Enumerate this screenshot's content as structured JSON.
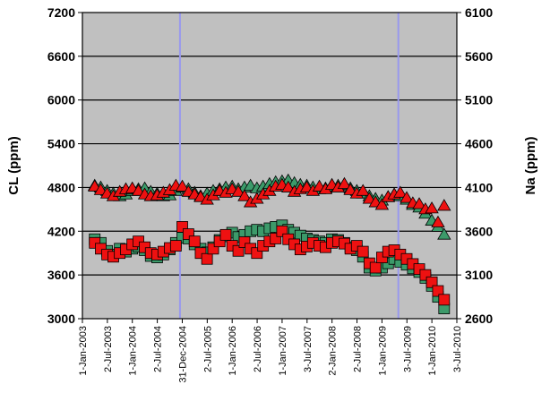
{
  "chart_data": {
    "type": "scatter",
    "y_left_label": "CL (ppm)",
    "y_right_label": "Na (ppm)",
    "y_left_range": [
      3000,
      7200
    ],
    "y_left_ticks": [
      "7200",
      "6600",
      "6000",
      "5400",
      "4800",
      "4200",
      "3600",
      "3000"
    ],
    "y_right_range": [
      2600,
      6100
    ],
    "y_right_ticks": [
      "6100",
      "5600",
      "5100",
      "4600",
      "4100",
      "3600",
      "3100",
      "2600"
    ],
    "x_tick_labels": [
      "1-Jan-2003",
      "2-Jul-2003",
      "1-Jan-2004",
      "2-Jul-2004",
      "31-Dec-2004",
      "2-Jul-2005",
      "1-Jan-2006",
      "2-Jul-2006",
      "1-Jan-2007",
      "3-Jul-2007",
      "2-Jan-2008",
      "2-Jul-2008",
      "1-Jan-2009",
      "3-Jul-2009",
      "1-Jan-2010",
      "3-Jul-2010"
    ],
    "x_range": [
      "2003-01-01",
      "2010-07-03"
    ],
    "grid": "horizontal",
    "vertical_markers": [
      "2004-12-15",
      "2009-05-01"
    ],
    "colors": {
      "plot_background": "#c0c0c0",
      "grid_line": "#000000",
      "marker_line": "#9999ee",
      "green_fill": "#3c9a6a",
      "red_fill": "#ee1111",
      "outline": "#000000"
    },
    "series": [
      {
        "marker": "triangle",
        "color": "green",
        "axis": "right",
        "points": [
          {
            "x": "2003-04-01",
            "y": 4120
          },
          {
            "x": "2003-05-15",
            "y": 4100
          },
          {
            "x": "2003-07-01",
            "y": 4060
          },
          {
            "x": "2003-08-15",
            "y": 4030
          },
          {
            "x": "2003-10-01",
            "y": 4000
          },
          {
            "x": "2003-11-15",
            "y": 4020
          },
          {
            "x": "2004-01-01",
            "y": 4060
          },
          {
            "x": "2004-02-15",
            "y": 4080
          },
          {
            "x": "2004-04-01",
            "y": 4090
          },
          {
            "x": "2004-05-15",
            "y": 4050
          },
          {
            "x": "2004-07-01",
            "y": 4030
          },
          {
            "x": "2004-08-15",
            "y": 4000
          },
          {
            "x": "2004-10-01",
            "y": 4010
          },
          {
            "x": "2004-11-15",
            "y": 4060
          },
          {
            "x": "2005-01-01",
            "y": 4100
          },
          {
            "x": "2005-02-15",
            "y": 4080
          },
          {
            "x": "2005-04-01",
            "y": 4040
          },
          {
            "x": "2005-05-15",
            "y": 4000
          },
          {
            "x": "2005-07-01",
            "y": 4030
          },
          {
            "x": "2005-08-15",
            "y": 4060
          },
          {
            "x": "2005-10-01",
            "y": 4080
          },
          {
            "x": "2005-11-15",
            "y": 4100
          },
          {
            "x": "2006-01-01",
            "y": 4110
          },
          {
            "x": "2006-02-15",
            "y": 4080
          },
          {
            "x": "2006-04-01",
            "y": 4100
          },
          {
            "x": "2006-05-15",
            "y": 4120
          },
          {
            "x": "2006-07-01",
            "y": 4090
          },
          {
            "x": "2006-08-15",
            "y": 4110
          },
          {
            "x": "2006-10-01",
            "y": 4140
          },
          {
            "x": "2006-11-15",
            "y": 4160
          },
          {
            "x": "2007-01-01",
            "y": 4170
          },
          {
            "x": "2007-02-15",
            "y": 4180
          },
          {
            "x": "2007-04-01",
            "y": 4150
          },
          {
            "x": "2007-05-15",
            "y": 4130
          },
          {
            "x": "2007-07-01",
            "y": 4120
          },
          {
            "x": "2007-08-15",
            "y": 4100
          },
          {
            "x": "2007-10-01",
            "y": 4080
          },
          {
            "x": "2007-11-15",
            "y": 4090
          },
          {
            "x": "2008-01-01",
            "y": 4110
          },
          {
            "x": "2008-02-15",
            "y": 4120
          },
          {
            "x": "2008-04-01",
            "y": 4130
          },
          {
            "x": "2008-05-15",
            "y": 4090
          },
          {
            "x": "2008-07-01",
            "y": 4060
          },
          {
            "x": "2008-08-15",
            "y": 4030
          },
          {
            "x": "2008-10-01",
            "y": 4000
          },
          {
            "x": "2008-11-15",
            "y": 3970
          },
          {
            "x": "2009-01-01",
            "y": 3950
          },
          {
            "x": "2009-02-15",
            "y": 3990
          },
          {
            "x": "2009-04-01",
            "y": 4020
          },
          {
            "x": "2009-05-15",
            "y": 4000
          },
          {
            "x": "2009-07-01",
            "y": 3960
          },
          {
            "x": "2009-08-15",
            "y": 3900
          },
          {
            "x": "2009-10-01",
            "y": 3870
          },
          {
            "x": "2009-11-15",
            "y": 3800
          },
          {
            "x": "2010-01-01",
            "y": 3720
          },
          {
            "x": "2010-02-15",
            "y": 3650
          },
          {
            "x": "2010-04-01",
            "y": 3560
          }
        ]
      },
      {
        "marker": "triangle",
        "color": "red",
        "axis": "right",
        "points": [
          {
            "x": "2003-04-01",
            "y": 4110
          },
          {
            "x": "2003-05-15",
            "y": 4070
          },
          {
            "x": "2003-07-01",
            "y": 4030
          },
          {
            "x": "2003-08-15",
            "y": 4000
          },
          {
            "x": "2003-10-01",
            "y": 4050
          },
          {
            "x": "2003-11-15",
            "y": 4080
          },
          {
            "x": "2004-01-01",
            "y": 4090
          },
          {
            "x": "2004-02-15",
            "y": 4060
          },
          {
            "x": "2004-04-01",
            "y": 4020
          },
          {
            "x": "2004-05-15",
            "y": 4000
          },
          {
            "x": "2004-07-01",
            "y": 4010
          },
          {
            "x": "2004-08-15",
            "y": 4040
          },
          {
            "x": "2004-10-01",
            "y": 4070
          },
          {
            "x": "2004-11-15",
            "y": 4120
          },
          {
            "x": "2005-01-01",
            "y": 4110
          },
          {
            "x": "2005-02-15",
            "y": 4050
          },
          {
            "x": "2005-04-01",
            "y": 4020
          },
          {
            "x": "2005-05-15",
            "y": 3990
          },
          {
            "x": "2005-07-01",
            "y": 3960
          },
          {
            "x": "2005-08-15",
            "y": 4010
          },
          {
            "x": "2005-10-01",
            "y": 4060
          },
          {
            "x": "2005-11-15",
            "y": 4040
          },
          {
            "x": "2006-01-01",
            "y": 4080
          },
          {
            "x": "2006-02-15",
            "y": 4050
          },
          {
            "x": "2006-04-01",
            "y": 4000
          },
          {
            "x": "2006-05-15",
            "y": 3930
          },
          {
            "x": "2006-07-01",
            "y": 3970
          },
          {
            "x": "2006-08-15",
            "y": 4020
          },
          {
            "x": "2006-10-01",
            "y": 4060
          },
          {
            "x": "2006-11-15",
            "y": 4110
          },
          {
            "x": "2007-01-01",
            "y": 4130
          },
          {
            "x": "2007-02-15",
            "y": 4100
          },
          {
            "x": "2007-04-01",
            "y": 4050
          },
          {
            "x": "2007-05-15",
            "y": 4080
          },
          {
            "x": "2007-07-01",
            "y": 4100
          },
          {
            "x": "2007-08-15",
            "y": 4060
          },
          {
            "x": "2007-10-01",
            "y": 4110
          },
          {
            "x": "2007-11-15",
            "y": 4080
          },
          {
            "x": "2008-01-01",
            "y": 4130
          },
          {
            "x": "2008-02-15",
            "y": 4100
          },
          {
            "x": "2008-04-01",
            "y": 4140
          },
          {
            "x": "2008-05-15",
            "y": 4070
          },
          {
            "x": "2008-07-01",
            "y": 4030
          },
          {
            "x": "2008-08-15",
            "y": 4060
          },
          {
            "x": "2008-10-01",
            "y": 3970
          },
          {
            "x": "2008-11-15",
            "y": 3930
          },
          {
            "x": "2009-01-01",
            "y": 3900
          },
          {
            "x": "2009-02-15",
            "y": 3990
          },
          {
            "x": "2009-04-01",
            "y": 4020
          },
          {
            "x": "2009-05-15",
            "y": 4040
          },
          {
            "x": "2009-07-01",
            "y": 3980
          },
          {
            "x": "2009-08-15",
            "y": 3920
          },
          {
            "x": "2009-10-01",
            "y": 3910
          },
          {
            "x": "2009-11-15",
            "y": 3850
          },
          {
            "x": "2010-01-01",
            "y": 3860
          },
          {
            "x": "2010-02-15",
            "y": 3700
          },
          {
            "x": "2010-04-01",
            "y": 3890
          }
        ]
      },
      {
        "marker": "square",
        "color": "green",
        "axis": "left",
        "points": [
          {
            "x": "2003-04-01",
            "y": 4090
          },
          {
            "x": "2003-05-15",
            "y": 4040
          },
          {
            "x": "2003-07-01",
            "y": 3930
          },
          {
            "x": "2003-08-15",
            "y": 3880
          },
          {
            "x": "2003-10-01",
            "y": 3960
          },
          {
            "x": "2003-11-15",
            "y": 3920
          },
          {
            "x": "2004-01-01",
            "y": 3960
          },
          {
            "x": "2004-02-15",
            "y": 3990
          },
          {
            "x": "2004-04-01",
            "y": 3940
          },
          {
            "x": "2004-05-15",
            "y": 3860
          },
          {
            "x": "2004-07-01",
            "y": 3840
          },
          {
            "x": "2004-08-15",
            "y": 3880
          },
          {
            "x": "2004-10-01",
            "y": 3950
          },
          {
            "x": "2004-11-15",
            "y": 4040
          },
          {
            "x": "2005-01-01",
            "y": 4110
          },
          {
            "x": "2005-02-15",
            "y": 4100
          },
          {
            "x": "2005-04-01",
            "y": 4020
          },
          {
            "x": "2005-05-15",
            "y": 3960
          },
          {
            "x": "2005-07-01",
            "y": 3910
          },
          {
            "x": "2005-08-15",
            "y": 3980
          },
          {
            "x": "2005-10-01",
            "y": 4080
          },
          {
            "x": "2005-11-15",
            "y": 4130
          },
          {
            "x": "2006-01-01",
            "y": 4180
          },
          {
            "x": "2006-02-15",
            "y": 4120
          },
          {
            "x": "2006-04-01",
            "y": 4150
          },
          {
            "x": "2006-05-15",
            "y": 4200
          },
          {
            "x": "2006-07-01",
            "y": 4220
          },
          {
            "x": "2006-08-15",
            "y": 4200
          },
          {
            "x": "2006-10-01",
            "y": 4240
          },
          {
            "x": "2006-11-15",
            "y": 4260
          },
          {
            "x": "2007-01-01",
            "y": 4280
          },
          {
            "x": "2007-02-15",
            "y": 4220
          },
          {
            "x": "2007-04-01",
            "y": 4180
          },
          {
            "x": "2007-05-15",
            "y": 4140
          },
          {
            "x": "2007-07-01",
            "y": 4100
          },
          {
            "x": "2007-08-15",
            "y": 4080
          },
          {
            "x": "2007-10-01",
            "y": 4060
          },
          {
            "x": "2007-11-15",
            "y": 4040
          },
          {
            "x": "2008-01-01",
            "y": 4090
          },
          {
            "x": "2008-02-15",
            "y": 4080
          },
          {
            "x": "2008-04-01",
            "y": 4040
          },
          {
            "x": "2008-05-15",
            "y": 3980
          },
          {
            "x": "2008-07-01",
            "y": 3940
          },
          {
            "x": "2008-08-15",
            "y": 3850
          },
          {
            "x": "2008-10-01",
            "y": 3700
          },
          {
            "x": "2008-11-15",
            "y": 3660
          },
          {
            "x": "2009-01-01",
            "y": 3700
          },
          {
            "x": "2009-02-15",
            "y": 3760
          },
          {
            "x": "2009-04-01",
            "y": 3820
          },
          {
            "x": "2009-05-15",
            "y": 3780
          },
          {
            "x": "2009-07-01",
            "y": 3740
          },
          {
            "x": "2009-08-15",
            "y": 3690
          },
          {
            "x": "2009-10-01",
            "y": 3640
          },
          {
            "x": "2009-11-15",
            "y": 3560
          },
          {
            "x": "2010-01-01",
            "y": 3450
          },
          {
            "x": "2010-02-15",
            "y": 3300
          },
          {
            "x": "2010-04-01",
            "y": 3140
          }
        ]
      },
      {
        "marker": "square",
        "color": "red",
        "axis": "left",
        "points": [
          {
            "x": "2003-04-01",
            "y": 4040
          },
          {
            "x": "2003-05-15",
            "y": 3960
          },
          {
            "x": "2003-07-01",
            "y": 3880
          },
          {
            "x": "2003-08-15",
            "y": 3850
          },
          {
            "x": "2003-10-01",
            "y": 3900
          },
          {
            "x": "2003-11-15",
            "y": 3950
          },
          {
            "x": "2004-01-01",
            "y": 4020
          },
          {
            "x": "2004-02-15",
            "y": 4060
          },
          {
            "x": "2004-04-01",
            "y": 3980
          },
          {
            "x": "2004-05-15",
            "y": 3900
          },
          {
            "x": "2004-07-01",
            "y": 3880
          },
          {
            "x": "2004-08-15",
            "y": 3920
          },
          {
            "x": "2004-10-01",
            "y": 3970
          },
          {
            "x": "2004-11-15",
            "y": 4000
          },
          {
            "x": "2005-01-01",
            "y": 4260
          },
          {
            "x": "2005-02-15",
            "y": 4160
          },
          {
            "x": "2005-04-01",
            "y": 4060
          },
          {
            "x": "2005-05-15",
            "y": 3900
          },
          {
            "x": "2005-07-01",
            "y": 3820
          },
          {
            "x": "2005-08-15",
            "y": 3960
          },
          {
            "x": "2005-10-01",
            "y": 4060
          },
          {
            "x": "2005-11-15",
            "y": 4150
          },
          {
            "x": "2006-01-01",
            "y": 4000
          },
          {
            "x": "2006-02-15",
            "y": 3930
          },
          {
            "x": "2006-04-01",
            "y": 4050
          },
          {
            "x": "2006-05-15",
            "y": 3960
          },
          {
            "x": "2006-07-01",
            "y": 3900
          },
          {
            "x": "2006-08-15",
            "y": 4000
          },
          {
            "x": "2006-10-01",
            "y": 4060
          },
          {
            "x": "2006-11-15",
            "y": 4100
          },
          {
            "x": "2007-01-01",
            "y": 4200
          },
          {
            "x": "2007-02-15",
            "y": 4090
          },
          {
            "x": "2007-04-01",
            "y": 4020
          },
          {
            "x": "2007-05-15",
            "y": 3950
          },
          {
            "x": "2007-07-01",
            "y": 3990
          },
          {
            "x": "2007-08-15",
            "y": 4040
          },
          {
            "x": "2007-10-01",
            "y": 4000
          },
          {
            "x": "2007-11-15",
            "y": 3980
          },
          {
            "x": "2008-01-01",
            "y": 4040
          },
          {
            "x": "2008-02-15",
            "y": 4060
          },
          {
            "x": "2008-04-01",
            "y": 4030
          },
          {
            "x": "2008-05-15",
            "y": 3960
          },
          {
            "x": "2008-07-01",
            "y": 4000
          },
          {
            "x": "2008-08-15",
            "y": 3920
          },
          {
            "x": "2008-10-01",
            "y": 3760
          },
          {
            "x": "2008-11-15",
            "y": 3700
          },
          {
            "x": "2009-01-01",
            "y": 3840
          },
          {
            "x": "2009-02-15",
            "y": 3920
          },
          {
            "x": "2009-04-01",
            "y": 3940
          },
          {
            "x": "2009-05-15",
            "y": 3880
          },
          {
            "x": "2009-07-01",
            "y": 3820
          },
          {
            "x": "2009-08-15",
            "y": 3750
          },
          {
            "x": "2009-10-01",
            "y": 3680
          },
          {
            "x": "2009-11-15",
            "y": 3600
          },
          {
            "x": "2010-01-01",
            "y": 3500
          },
          {
            "x": "2010-02-15",
            "y": 3380
          },
          {
            "x": "2010-04-01",
            "y": 3260
          }
        ]
      }
    ]
  }
}
